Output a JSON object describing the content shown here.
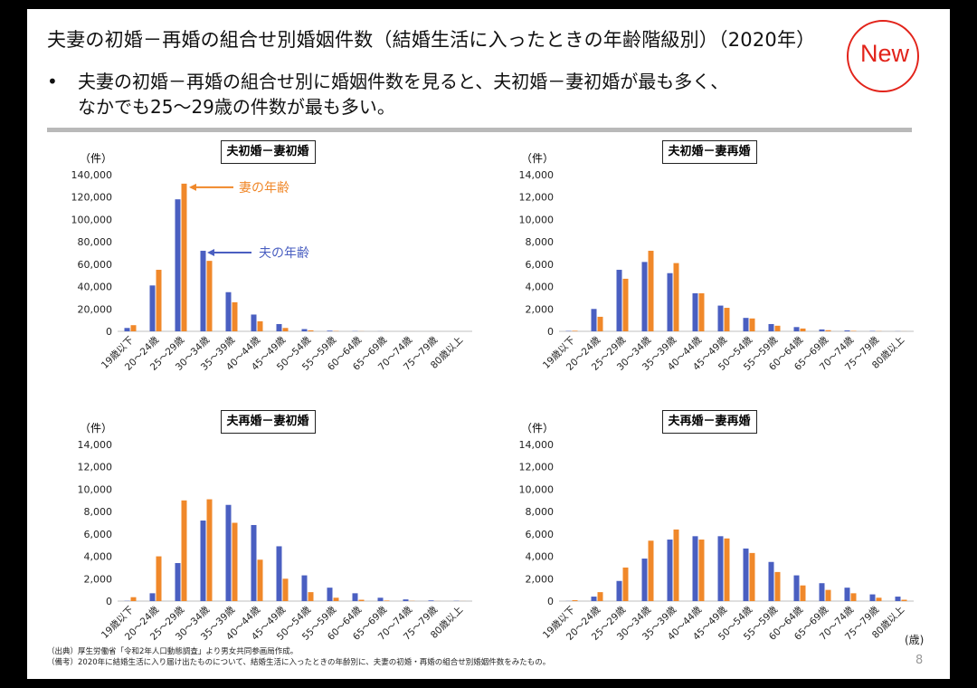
{
  "header": {
    "title": "夫妻の初婚－再婚の組合せ別婚姻件数（結婚生活に入ったときの年齢階級別）（2020年）",
    "badge": "New"
  },
  "lead": {
    "bullet": "•",
    "line1": "夫妻の初婚－再婚の組合せ別に婚姻件数を見ると、夫初婚－妻初婚が最も多く、",
    "line2": "なかでも25～29歳の件数が最も多い。"
  },
  "colors": {
    "husband": "#4a5fc1",
    "wife": "#f0882a",
    "badge": "#e2231a"
  },
  "unit_label": "（件）",
  "age_unit_label": "(歳)",
  "page_number": "8",
  "annotations": {
    "wife_age": "妻の年齢",
    "husband_age": "夫の年齢"
  },
  "notes": {
    "source": "（出典）厚生労働省「令和2年人口動態調査」より男女共同参画局作成。",
    "remark": "（備考）2020年に結婚生活に入り届け出たものについて、結婚生活に入ったときの年齢別に、夫妻の初婚・再婚の組合せ別婚姻件数をみたもの。"
  },
  "chart_data": [
    {
      "type": "bar",
      "title": "夫初婚－妻初婚",
      "ylabel": "（件）",
      "ylim": [
        0,
        140000
      ],
      "yticks": [
        0,
        20000,
        40000,
        60000,
        80000,
        100000,
        120000,
        140000
      ],
      "categories": [
        "19歳以下",
        "20～24歳",
        "25～29歳",
        "30～34歳",
        "35～39歳",
        "40～44歳",
        "45～49歳",
        "50～54歳",
        "55～59歳",
        "60～64歳",
        "65～69歳",
        "70～74歳",
        "75～79歳",
        "80歳以上"
      ],
      "series": [
        {
          "name": "夫の年齢",
          "color": "#4a5fc1",
          "values": [
            3000,
            41000,
            118000,
            72000,
            35000,
            15000,
            6500,
            2000,
            600,
            200,
            80,
            30,
            10,
            5
          ]
        },
        {
          "name": "妻の年齢",
          "color": "#f0882a",
          "values": [
            5500,
            55000,
            132000,
            63000,
            26000,
            9000,
            3000,
            900,
            300,
            100,
            40,
            15,
            5,
            2
          ]
        }
      ]
    },
    {
      "type": "bar",
      "title": "夫初婚－妻再婚",
      "ylabel": "（件）",
      "ylim": [
        0,
        14000
      ],
      "yticks": [
        0,
        2000,
        4000,
        6000,
        8000,
        10000,
        12000,
        14000
      ],
      "categories": [
        "19歳以下",
        "20～24歳",
        "25～29歳",
        "30～34歳",
        "35～39歳",
        "40～44歳",
        "45～49歳",
        "50～54歳",
        "55～59歳",
        "60～64歳",
        "65～69歳",
        "70～74歳",
        "75～79歳",
        "80歳以上"
      ],
      "series": [
        {
          "name": "夫の年齢",
          "color": "#4a5fc1",
          "values": [
            30,
            2000,
            5500,
            6200,
            5200,
            3400,
            2300,
            1200,
            650,
            380,
            170,
            80,
            30,
            10
          ]
        },
        {
          "name": "妻の年齢",
          "color": "#f0882a",
          "values": [
            50,
            1300,
            4700,
            7200,
            6100,
            3400,
            2100,
            1150,
            500,
            250,
            100,
            40,
            20,
            5
          ]
        }
      ]
    },
    {
      "type": "bar",
      "title": "夫再婚－妻初婚",
      "ylabel": "（件）",
      "ylim": [
        0,
        14000
      ],
      "yticks": [
        0,
        2000,
        4000,
        6000,
        8000,
        10000,
        12000,
        14000
      ],
      "categories": [
        "19歳以下",
        "20～24歳",
        "25～29歳",
        "30～34歳",
        "35～39歳",
        "40～44歳",
        "45～49歳",
        "50～54歳",
        "55～59歳",
        "60～64歳",
        "65～69歳",
        "70～74歳",
        "75～79歳",
        "80歳以上"
      ],
      "series": [
        {
          "name": "夫の年齢",
          "color": "#4a5fc1",
          "values": [
            20,
            700,
            3400,
            7200,
            8600,
            6800,
            4900,
            2300,
            1200,
            700,
            300,
            150,
            60,
            20
          ]
        },
        {
          "name": "妻の年齢",
          "color": "#f0882a",
          "values": [
            350,
            4000,
            9000,
            9100,
            7000,
            3700,
            2000,
            800,
            300,
            120,
            50,
            20,
            10,
            5
          ]
        }
      ]
    },
    {
      "type": "bar",
      "title": "夫再婚－妻再婚",
      "ylabel": "（件）",
      "ylim": [
        0,
        14000
      ],
      "yticks": [
        0,
        2000,
        4000,
        6000,
        8000,
        10000,
        12000,
        14000
      ],
      "categories": [
        "19歳以下",
        "20～24歳",
        "25～29歳",
        "30～34歳",
        "35～39歳",
        "40～44歳",
        "45～49歳",
        "50～54歳",
        "55～59歳",
        "60～64歳",
        "65～69歳",
        "70～74歳",
        "75～79歳",
        "80歳以上"
      ],
      "series": [
        {
          "name": "夫の年齢",
          "color": "#4a5fc1",
          "values": [
            10,
            400,
            1800,
            3800,
            5500,
            5800,
            5800,
            4700,
            3500,
            2300,
            1600,
            1200,
            600,
            400
          ]
        },
        {
          "name": "妻の年齢",
          "color": "#f0882a",
          "values": [
            80,
            800,
            3000,
            5400,
            6400,
            5500,
            5600,
            4300,
            2600,
            1400,
            1000,
            700,
            300,
            120
          ]
        }
      ]
    }
  ]
}
